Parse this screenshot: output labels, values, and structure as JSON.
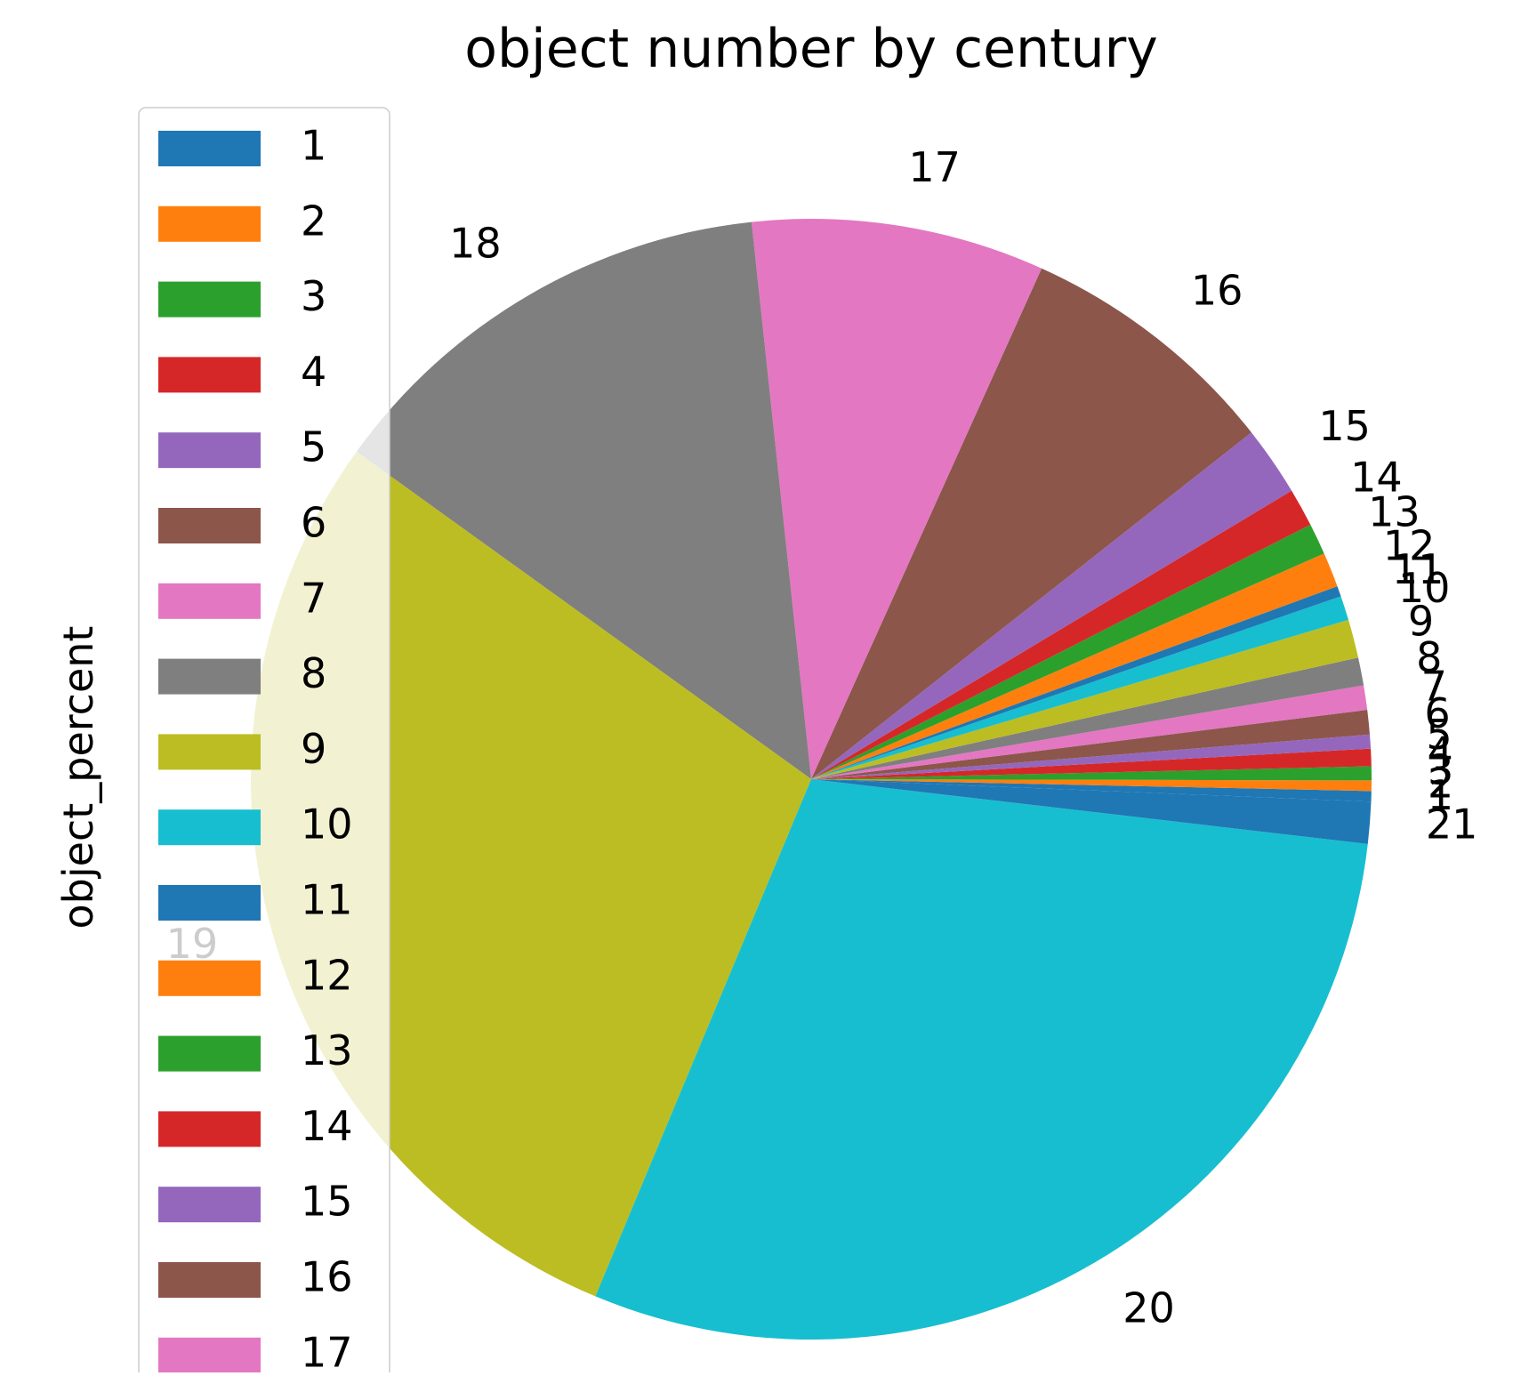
{
  "chart_data": {
    "type": "pie",
    "title": "object number by century",
    "ylabel": "object_percent",
    "categories": [
      "1",
      "2",
      "3",
      "4",
      "5",
      "6",
      "7",
      "8",
      "9",
      "10",
      "11",
      "12",
      "13",
      "14",
      "15",
      "16",
      "17",
      "18",
      "19",
      "20",
      "21"
    ],
    "values": [
      0.3,
      0.3,
      0.4,
      0.5,
      0.4,
      0.7,
      0.7,
      0.8,
      1.1,
      0.7,
      0.3,
      1.0,
      0.9,
      1.1,
      2.0,
      7.6,
      8.4,
      13.3,
      28.5,
      29.3,
      1.2
    ],
    "colors": [
      "#1f77b4",
      "#ff7f0e",
      "#2ca02c",
      "#d62728",
      "#9467bd",
      "#8c564b",
      "#e377c2",
      "#7f7f7f",
      "#bcbd22",
      "#17becf",
      "#1f77b4",
      "#ff7f0e",
      "#2ca02c",
      "#d62728",
      "#9467bd",
      "#8c564b",
      "#e377c2",
      "#7f7f7f",
      "#bcbd22",
      "#17becf",
      "#1f77b4"
    ],
    "start_angle_deg": -2.3,
    "direction": "counterclockwise",
    "legend": {
      "placement": "upper-left",
      "entries": [
        "1",
        "2",
        "3",
        "4",
        "5",
        "6",
        "7",
        "8",
        "9",
        "10",
        "11",
        "12",
        "13",
        "14",
        "15",
        "16",
        "17"
      ]
    }
  }
}
